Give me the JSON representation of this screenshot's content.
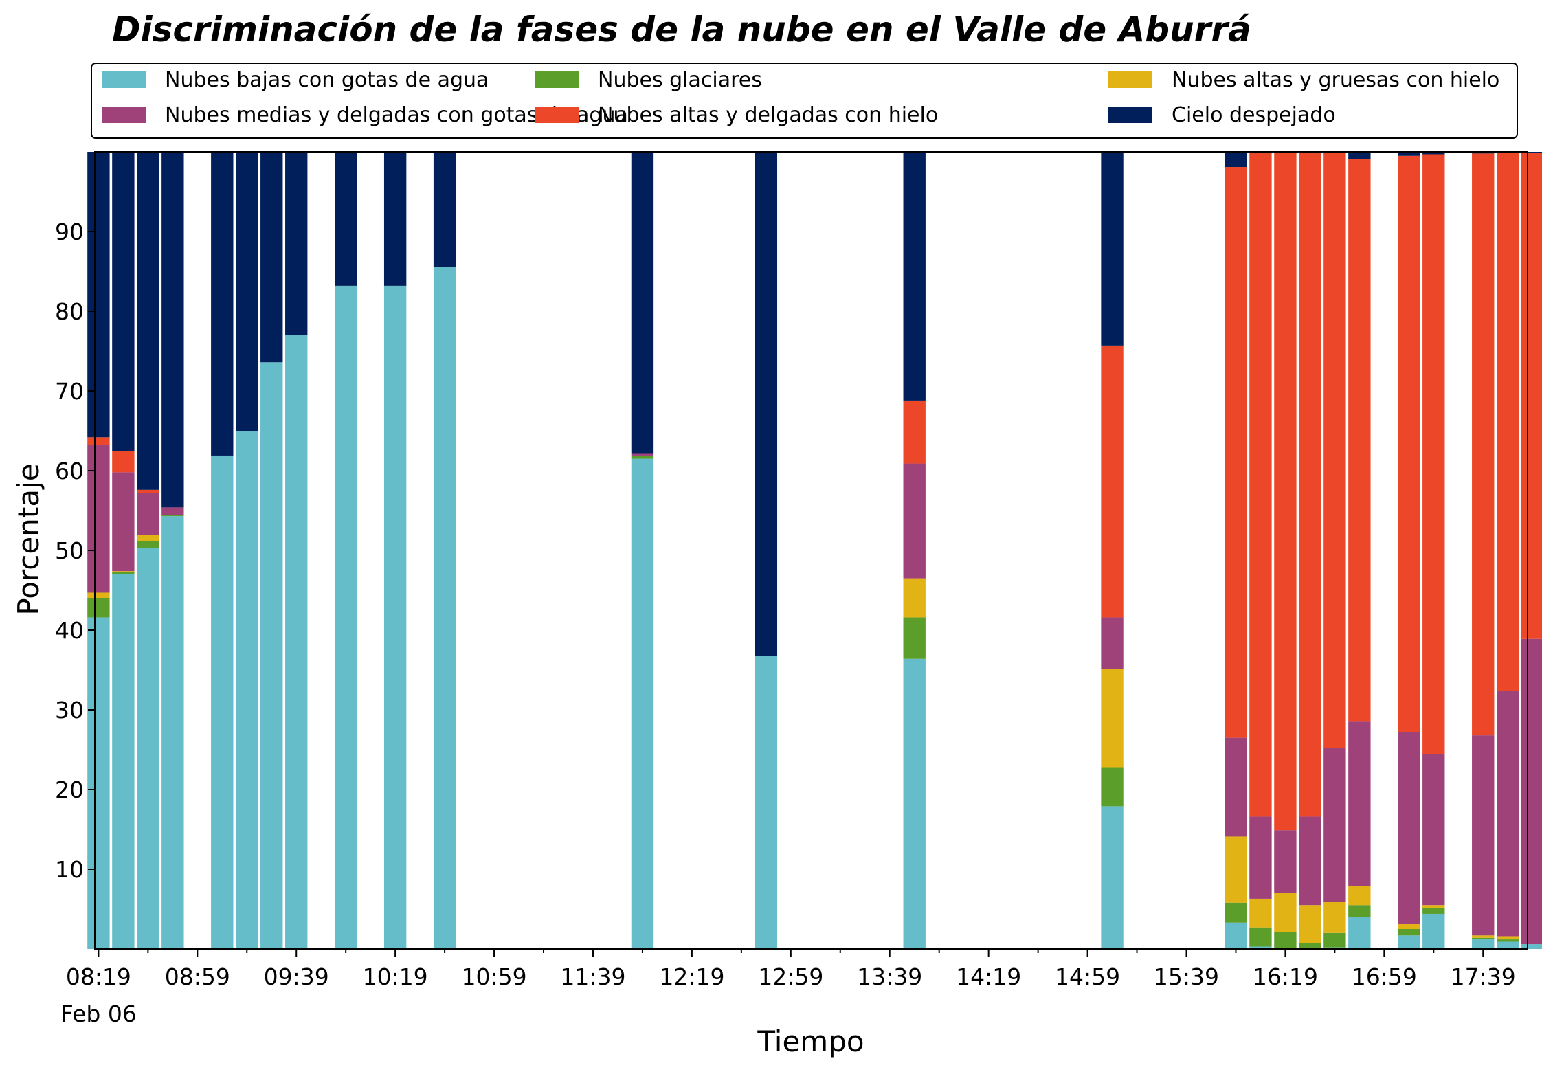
{
  "chart_data": {
    "type": "bar",
    "stacked": true,
    "title": "Discriminación de la fases de la nube en el Valle de Aburrá",
    "xlabel": "Tiempo",
    "ylabel": "Porcentaje",
    "ylim": [
      0,
      100
    ],
    "yticks": [
      10,
      20,
      30,
      40,
      50,
      60,
      70,
      80,
      90
    ],
    "x_tick_labels": [
      "08:19",
      "08:59",
      "09:39",
      "10:19",
      "10:59",
      "11:39",
      "12:19",
      "12:59",
      "13:39",
      "14:19",
      "14:59",
      "15:39",
      "16:19",
      "16:59",
      "17:39"
    ],
    "x_tick_minutes": [
      499,
      539,
      579,
      619,
      659,
      699,
      739,
      779,
      819,
      859,
      899,
      939,
      979,
      1019,
      1059
    ],
    "x_sublabel": "Feb 06",
    "xlim_minutes": [
      497.5,
      1077
    ],
    "bar_width_minutes": 9,
    "legend": {
      "position": "top",
      "columns": 3
    },
    "series": [
      {
        "name": "Nubes bajas con gotas de agua",
        "color": "#64BDC8"
      },
      {
        "name": "Nubes glaciares",
        "color": "#5C9E2A"
      },
      {
        "name": "Nubes altas y gruesas con hielo",
        "color": "#E2B314"
      },
      {
        "name": "Nubes medias y delgadas con gotas de agua",
        "color": "#9E4279"
      },
      {
        "name": "Nubes altas y delgadas con hielo",
        "color": "#EC4729"
      },
      {
        "name": "Cielo despejado",
        "color": "#011F5B"
      }
    ],
    "bars": [
      {
        "time": "08:19",
        "values": [
          41.6,
          2.4,
          0.7,
          18.5,
          1.0,
          35.8
        ]
      },
      {
        "time": "08:29",
        "values": [
          47.0,
          0.3,
          0.1,
          12.4,
          2.7,
          37.5
        ]
      },
      {
        "time": "08:39",
        "values": [
          50.3,
          0.9,
          0.7,
          5.3,
          0.4,
          42.4
        ]
      },
      {
        "time": "08:49",
        "values": [
          54.3,
          0.1,
          0.0,
          1.0,
          0.0,
          44.6
        ]
      },
      {
        "time": "09:09",
        "values": [
          61.9,
          0.0,
          0.0,
          0.0,
          0.0,
          38.1
        ]
      },
      {
        "time": "09:19",
        "values": [
          65.0,
          0.0,
          0.0,
          0.0,
          0.0,
          35.0
        ]
      },
      {
        "time": "09:29",
        "values": [
          73.6,
          0.0,
          0.0,
          0.0,
          0.0,
          26.4
        ]
      },
      {
        "time": "09:39",
        "values": [
          77.0,
          0.0,
          0.0,
          0.0,
          0.0,
          23.0
        ]
      },
      {
        "time": "09:59",
        "values": [
          83.2,
          0.0,
          0.0,
          0.0,
          0.0,
          16.8
        ]
      },
      {
        "time": "10:19",
        "values": [
          83.2,
          0.0,
          0.0,
          0.0,
          0.0,
          16.8
        ]
      },
      {
        "time": "10:39",
        "values": [
          85.6,
          0.0,
          0.0,
          0.0,
          0.0,
          14.4
        ]
      },
      {
        "time": "11:59",
        "values": [
          61.5,
          0.4,
          0.0,
          0.3,
          0.0,
          37.8
        ]
      },
      {
        "time": "12:49",
        "values": [
          36.8,
          0.0,
          0.0,
          0.0,
          0.0,
          63.2
        ]
      },
      {
        "time": "13:49",
        "values": [
          36.4,
          5.2,
          4.9,
          14.4,
          7.9,
          31.2
        ]
      },
      {
        "time": "15:09",
        "values": [
          17.9,
          4.9,
          12.3,
          6.5,
          34.1,
          24.3
        ]
      },
      {
        "time": "15:59",
        "values": [
          3.3,
          2.5,
          8.3,
          12.4,
          71.6,
          1.9
        ]
      },
      {
        "time": "16:09",
        "values": [
          0.3,
          2.4,
          3.6,
          10.3,
          83.4,
          0.0
        ]
      },
      {
        "time": "16:19",
        "values": [
          0.1,
          2.0,
          4.9,
          7.9,
          85.1,
          0.0
        ]
      },
      {
        "time": "16:29",
        "values": [
          0.1,
          0.6,
          4.8,
          11.1,
          83.4,
          0.0
        ]
      },
      {
        "time": "16:39",
        "values": [
          0.2,
          1.8,
          3.9,
          19.3,
          74.8,
          0.0
        ]
      },
      {
        "time": "16:49",
        "values": [
          4.0,
          1.5,
          2.4,
          20.6,
          70.6,
          0.9
        ]
      },
      {
        "time": "17:09",
        "values": [
          1.7,
          0.8,
          0.6,
          24.1,
          72.3,
          0.5
        ]
      },
      {
        "time": "17:19",
        "values": [
          4.4,
          0.7,
          0.4,
          18.9,
          75.3,
          0.3
        ]
      },
      {
        "time": "17:39",
        "values": [
          1.2,
          0.2,
          0.3,
          25.1,
          73.0,
          0.2
        ]
      },
      {
        "time": "17:49",
        "values": [
          0.9,
          0.3,
          0.4,
          30.8,
          67.5,
          0.1
        ]
      },
      {
        "time": "17:59",
        "values": [
          0.6,
          0.0,
          0.0,
          38.3,
          61.0,
          0.1
        ]
      }
    ]
  }
}
